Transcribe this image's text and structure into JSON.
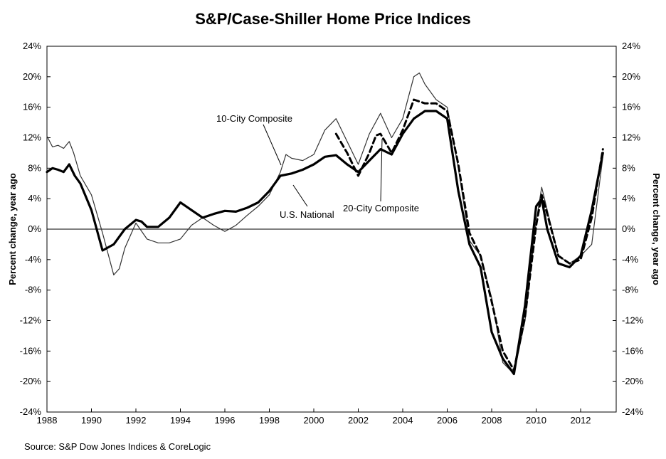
{
  "chart_data": {
    "type": "line",
    "title": "S&P/Case-Shiller Home Price Indices",
    "source": "Source: S&P Dow Jones Indices & CoreLogic",
    "ylabel_left": "Percent change, year ago",
    "ylabel_right": "Percent change, year ago",
    "xlim": [
      1988,
      2013.6
    ],
    "ylim": [
      -24,
      24
    ],
    "x_ticks": [
      1988,
      1990,
      1992,
      1994,
      1996,
      1998,
      2000,
      2002,
      2004,
      2006,
      2008,
      2010,
      2012
    ],
    "x_tick_labels": [
      "1988",
      "1990",
      "1992",
      "1994",
      "1996",
      "1998",
      "2000",
      "2002",
      "2004",
      "2006",
      "2008",
      "2010",
      "2012"
    ],
    "y_ticks": [
      24,
      20,
      16,
      12,
      8,
      4,
      0,
      -4,
      -8,
      -12,
      -16,
      -20,
      -24
    ],
    "y_tick_labels": [
      "24%",
      "20%",
      "16%",
      "12%",
      "8%",
      "4%",
      "0%",
      "-4%",
      "-8%",
      "-12%",
      "-16%",
      "-20%",
      "-24%"
    ],
    "grid": false,
    "series": [
      {
        "name": "10-City Composite",
        "style": "thin",
        "color": "#333333",
        "x": [
          1988.0,
          1988.25,
          1988.5,
          1988.75,
          1989.0,
          1989.2,
          1989.5,
          1990.0,
          1990.5,
          1991.0,
          1991.25,
          1991.5,
          1992.0,
          1992.5,
          1993.0,
          1993.5,
          1994.0,
          1994.5,
          1995.0,
          1995.5,
          1996.0,
          1996.5,
          1997.0,
          1997.5,
          1998.0,
          1998.5,
          1998.75,
          1999.0,
          1999.5,
          2000.0,
          2000.5,
          2001.0,
          2001.5,
          2002.0,
          2002.5,
          2003.0,
          2003.5,
          2004.0,
          2004.5,
          2004.75,
          2005.0,
          2005.5,
          2006.0,
          2006.5,
          2007.0,
          2007.5,
          2008.0,
          2008.5,
          2009.0,
          2009.5,
          2010.0,
          2010.25,
          2010.5,
          2011.0,
          2011.5,
          2012.0,
          2012.5,
          2013.0
        ],
        "y": [
          12.2,
          10.8,
          11.0,
          10.6,
          11.5,
          10.0,
          7.0,
          4.5,
          -0.5,
          -6.0,
          -5.2,
          -2.5,
          0.8,
          -1.3,
          -1.8,
          -1.8,
          -1.3,
          0.5,
          1.5,
          0.5,
          -0.3,
          0.5,
          1.8,
          3.0,
          4.5,
          7.5,
          9.8,
          9.3,
          9.0,
          9.8,
          13.0,
          14.5,
          11.5,
          8.5,
          12.5,
          15.2,
          12.0,
          14.5,
          20.0,
          20.5,
          19.0,
          17.0,
          16.0,
          8.0,
          -1.5,
          -3.5,
          -9.0,
          -17.5,
          -19.0,
          -12.0,
          1.0,
          5.5,
          2.5,
          -3.5,
          -4.5,
          -3.5,
          -2.0,
          9.5
        ]
      },
      {
        "name": "20-City Composite",
        "style": "dashed",
        "color": "#000000",
        "x": [
          2001.0,
          2001.5,
          2002.0,
          2002.5,
          2002.8,
          2003.0,
          2003.5,
          2004.0,
          2004.5,
          2005.0,
          2005.5,
          2006.0,
          2006.5,
          2007.0,
          2007.5,
          2008.0,
          2008.5,
          2009.0,
          2009.5,
          2010.0,
          2010.25,
          2010.5,
          2011.0,
          2011.5,
          2012.0,
          2012.5,
          2013.0
        ],
        "y": [
          12.5,
          10.0,
          7.0,
          10.0,
          12.3,
          12.5,
          10.0,
          13.0,
          17.0,
          16.5,
          16.5,
          15.5,
          8.5,
          -0.5,
          -3.5,
          -9.5,
          -16.0,
          -18.5,
          -11.5,
          0.5,
          4.5,
          2.0,
          -3.5,
          -4.5,
          -4.0,
          1.5,
          10.5
        ]
      },
      {
        "name": "U.S. National",
        "style": "thick",
        "color": "#000000",
        "x": [
          1988.0,
          1988.25,
          1988.5,
          1988.75,
          1989.0,
          1989.25,
          1989.5,
          1990.0,
          1990.5,
          1991.0,
          1991.5,
          1992.0,
          1992.25,
          1992.5,
          1993.0,
          1993.5,
          1994.0,
          1994.5,
          1995.0,
          1995.5,
          1996.0,
          1996.5,
          1997.0,
          1997.5,
          1998.0,
          1998.5,
          1999.0,
          1999.5,
          2000.0,
          2000.5,
          2001.0,
          2001.5,
          2002.0,
          2002.5,
          2003.0,
          2003.5,
          2004.0,
          2004.5,
          2005.0,
          2005.5,
          2006.0,
          2006.5,
          2007.0,
          2007.5,
          2008.0,
          2008.5,
          2009.0,
          2009.5,
          2010.0,
          2010.25,
          2010.5,
          2011.0,
          2011.5,
          2012.0,
          2012.5,
          2013.0
        ],
        "y": [
          7.5,
          8.0,
          7.8,
          7.5,
          8.5,
          7.0,
          6.0,
          2.5,
          -2.8,
          -2.0,
          0.0,
          1.2,
          1.0,
          0.3,
          0.3,
          1.5,
          3.5,
          2.5,
          1.5,
          2.0,
          2.4,
          2.3,
          2.8,
          3.5,
          5.0,
          7.0,
          7.3,
          7.8,
          8.5,
          9.5,
          9.7,
          8.5,
          7.5,
          9.0,
          10.5,
          9.8,
          12.5,
          14.5,
          15.5,
          15.5,
          14.5,
          5.0,
          -2.0,
          -5.0,
          -13.5,
          -17.0,
          -19.0,
          -10.0,
          3.0,
          4.0,
          0.0,
          -4.5,
          -5.0,
          -3.5,
          2.5,
          10.0
        ]
      }
    ],
    "annotations": [
      {
        "text": "10-City Composite"
      },
      {
        "text": "U.S. National"
      },
      {
        "text": "20-City Composite"
      }
    ]
  }
}
